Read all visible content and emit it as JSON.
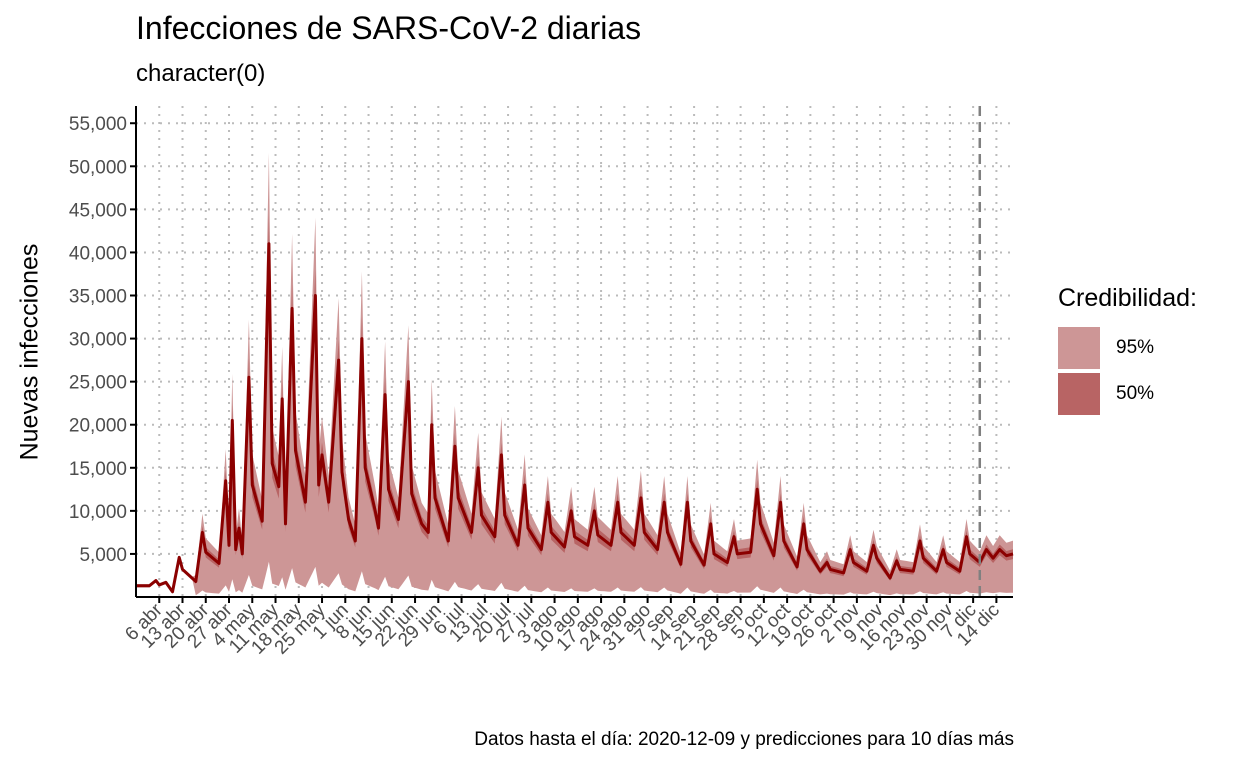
{
  "title": "Infecciones de SARS-CoV-2 diarias",
  "subtitle": "character(0)",
  "caption": "Datos hasta el día: 2020-12-09 y predicciones para 10 días más",
  "legend": {
    "title": "Credibilidad:",
    "items": [
      {
        "label": "95%",
        "color": "#cd9696"
      },
      {
        "label": "50%",
        "color": "#b86464"
      }
    ]
  },
  "colors": {
    "band95": "#cd9696",
    "band50": "#b86464",
    "median": "#8b0000",
    "grid": "#bbbbbb",
    "vline": "#808080"
  },
  "chart_data": {
    "type": "area",
    "ylabel": "Nuevas infecciones",
    "ylim": [
      0,
      57000
    ],
    "y_ticks": [
      5000,
      10000,
      15000,
      20000,
      25000,
      30000,
      35000,
      40000,
      45000,
      50000,
      55000
    ],
    "y_tick_labels": [
      "5,000",
      "10,000",
      "15,000",
      "20,000",
      "25,000",
      "30,000",
      "35,000",
      "40,000",
      "45,000",
      "50,000",
      "55,000"
    ],
    "x_ticks": [
      "2020-04-06",
      "2020-04-13",
      "2020-04-20",
      "2020-04-27",
      "2020-05-04",
      "2020-05-11",
      "2020-05-18",
      "2020-05-25",
      "2020-06-01",
      "2020-06-08",
      "2020-06-15",
      "2020-06-22",
      "2020-06-29",
      "2020-07-06",
      "2020-07-13",
      "2020-07-20",
      "2020-07-27",
      "2020-08-03",
      "2020-08-10",
      "2020-08-17",
      "2020-08-24",
      "2020-08-31",
      "2020-09-07",
      "2020-09-14",
      "2020-09-21",
      "2020-09-28",
      "2020-10-05",
      "2020-10-12",
      "2020-10-19",
      "2020-10-26",
      "2020-11-02",
      "2020-11-09",
      "2020-11-16",
      "2020-11-23",
      "2020-11-30",
      "2020-12-07",
      "2020-12-14"
    ],
    "x_tick_labels": [
      "6 abr",
      "13 abr",
      "20 abr",
      "27 abr",
      "4 may",
      "11 may",
      "18 may",
      "25 may",
      "1 jun",
      "8 jun",
      "15 jun",
      "22 jun",
      "29 jun",
      "6 jul",
      "13 jul",
      "20 jul",
      "27 jul",
      "3 ago",
      "10 ago",
      "17 ago",
      "24 ago",
      "31 ago",
      "7 sep",
      "14 sep",
      "21 sep",
      "28 sep",
      "5 oct",
      "12 oct",
      "19 oct",
      "26 oct",
      "2 nov",
      "9 nov",
      "16 nov",
      "23 nov",
      "30 nov",
      "7 dic",
      "14 dic"
    ],
    "x_range": [
      "2020-03-30",
      "2020-12-19"
    ],
    "vline": "2020-12-09",
    "grid": true,
    "legend_position": "right",
    "series": [
      {
        "points": [
          [
            "2020-03-30",
            1300
          ],
          [
            "2020-04-03",
            1300
          ],
          [
            "2020-04-05",
            1900
          ],
          [
            "2020-04-06",
            1400
          ],
          [
            "2020-04-08",
            1700
          ],
          [
            "2020-04-10",
            600
          ],
          [
            "2020-04-12",
            4600
          ],
          [
            "2020-04-13",
            3200
          ],
          [
            "2020-04-17",
            1800
          ],
          [
            "2020-04-19",
            7500
          ],
          [
            "2020-04-20",
            5200
          ],
          [
            "2020-04-24",
            3900
          ],
          [
            "2020-04-26",
            13500
          ],
          [
            "2020-04-27",
            6000
          ],
          [
            "2020-04-28",
            20500
          ],
          [
            "2020-04-29",
            5500
          ],
          [
            "2020-04-30",
            8000
          ],
          [
            "2020-05-01",
            5000
          ],
          [
            "2020-05-03",
            25500
          ],
          [
            "2020-05-04",
            13000
          ],
          [
            "2020-05-07",
            8800
          ],
          [
            "2020-05-09",
            41000
          ],
          [
            "2020-05-10",
            15500
          ],
          [
            "2020-05-12",
            12800
          ],
          [
            "2020-05-13",
            23000
          ],
          [
            "2020-05-14",
            8500
          ],
          [
            "2020-05-16",
            33500
          ],
          [
            "2020-05-17",
            17000
          ],
          [
            "2020-05-20",
            11000
          ],
          [
            "2020-05-23",
            35000
          ],
          [
            "2020-05-24",
            13000
          ],
          [
            "2020-05-25",
            16500
          ],
          [
            "2020-05-27",
            11000
          ],
          [
            "2020-05-30",
            27500
          ],
          [
            "2020-05-31",
            14500
          ],
          [
            "2020-06-02",
            9000
          ],
          [
            "2020-06-04",
            6500
          ],
          [
            "2020-06-06",
            30000
          ],
          [
            "2020-06-07",
            15000
          ],
          [
            "2020-06-10",
            10000
          ],
          [
            "2020-06-11",
            8000
          ],
          [
            "2020-06-13",
            23500
          ],
          [
            "2020-06-14",
            12500
          ],
          [
            "2020-06-17",
            9000
          ],
          [
            "2020-06-20",
            25000
          ],
          [
            "2020-06-21",
            12000
          ],
          [
            "2020-06-24",
            8500
          ],
          [
            "2020-06-26",
            7500
          ],
          [
            "2020-06-27",
            20000
          ],
          [
            "2020-06-28",
            11500
          ],
          [
            "2020-07-02",
            6500
          ],
          [
            "2020-07-04",
            17500
          ],
          [
            "2020-07-05",
            11500
          ],
          [
            "2020-07-09",
            7500
          ],
          [
            "2020-07-11",
            15000
          ],
          [
            "2020-07-12",
            9500
          ],
          [
            "2020-07-16",
            7000
          ],
          [
            "2020-07-18",
            16500
          ],
          [
            "2020-07-19",
            9500
          ],
          [
            "2020-07-23",
            6000
          ],
          [
            "2020-07-25",
            13000
          ],
          [
            "2020-07-26",
            8000
          ],
          [
            "2020-07-30",
            5500
          ],
          [
            "2020-08-01",
            11000
          ],
          [
            "2020-08-02",
            7500
          ],
          [
            "2020-08-06",
            5800
          ],
          [
            "2020-08-08",
            10000
          ],
          [
            "2020-08-09",
            7000
          ],
          [
            "2020-08-13",
            6000
          ],
          [
            "2020-08-15",
            10000
          ],
          [
            "2020-08-16",
            7200
          ],
          [
            "2020-08-20",
            6000
          ],
          [
            "2020-08-22",
            11000
          ],
          [
            "2020-08-23",
            7500
          ],
          [
            "2020-08-27",
            6000
          ],
          [
            "2020-08-29",
            11500
          ],
          [
            "2020-08-30",
            7500
          ],
          [
            "2020-09-03",
            5500
          ],
          [
            "2020-09-05",
            11000
          ],
          [
            "2020-09-06",
            7500
          ],
          [
            "2020-09-10",
            3800
          ],
          [
            "2020-09-12",
            11000
          ],
          [
            "2020-09-13",
            6500
          ],
          [
            "2020-09-17",
            3700
          ],
          [
            "2020-09-19",
            8500
          ],
          [
            "2020-09-20",
            5000
          ],
          [
            "2020-09-24",
            4000
          ],
          [
            "2020-09-26",
            7000
          ],
          [
            "2020-09-27",
            5000
          ],
          [
            "2020-10-01",
            5200
          ],
          [
            "2020-10-03",
            12500
          ],
          [
            "2020-10-04",
            8500
          ],
          [
            "2020-10-08",
            4800
          ],
          [
            "2020-10-10",
            11000
          ],
          [
            "2020-10-11",
            6500
          ],
          [
            "2020-10-15",
            3500
          ],
          [
            "2020-10-17",
            8500
          ],
          [
            "2020-10-18",
            5500
          ],
          [
            "2020-10-22",
            3000
          ],
          [
            "2020-10-24",
            4000
          ],
          [
            "2020-10-25",
            3200
          ],
          [
            "2020-10-29",
            2800
          ],
          [
            "2020-10-31",
            5500
          ],
          [
            "2020-11-01",
            4000
          ],
          [
            "2020-11-05",
            3000
          ],
          [
            "2020-11-07",
            6000
          ],
          [
            "2020-11-08",
            4500
          ],
          [
            "2020-11-12",
            2200
          ],
          [
            "2020-11-14",
            4200
          ],
          [
            "2020-11-15",
            3200
          ],
          [
            "2020-11-19",
            3000
          ],
          [
            "2020-11-21",
            6500
          ],
          [
            "2020-11-22",
            4500
          ],
          [
            "2020-11-26",
            3000
          ],
          [
            "2020-11-28",
            5500
          ],
          [
            "2020-11-29",
            4000
          ],
          [
            "2020-12-03",
            3000
          ],
          [
            "2020-12-05",
            7000
          ],
          [
            "2020-12-06",
            5000
          ],
          [
            "2020-12-09",
            4000
          ],
          [
            "2020-12-11",
            5500
          ],
          [
            "2020-12-13",
            4500
          ],
          [
            "2020-12-15",
            5500
          ],
          [
            "2020-12-17",
            4800
          ],
          [
            "2020-12-19",
            5000
          ]
        ]
      }
    ]
  }
}
